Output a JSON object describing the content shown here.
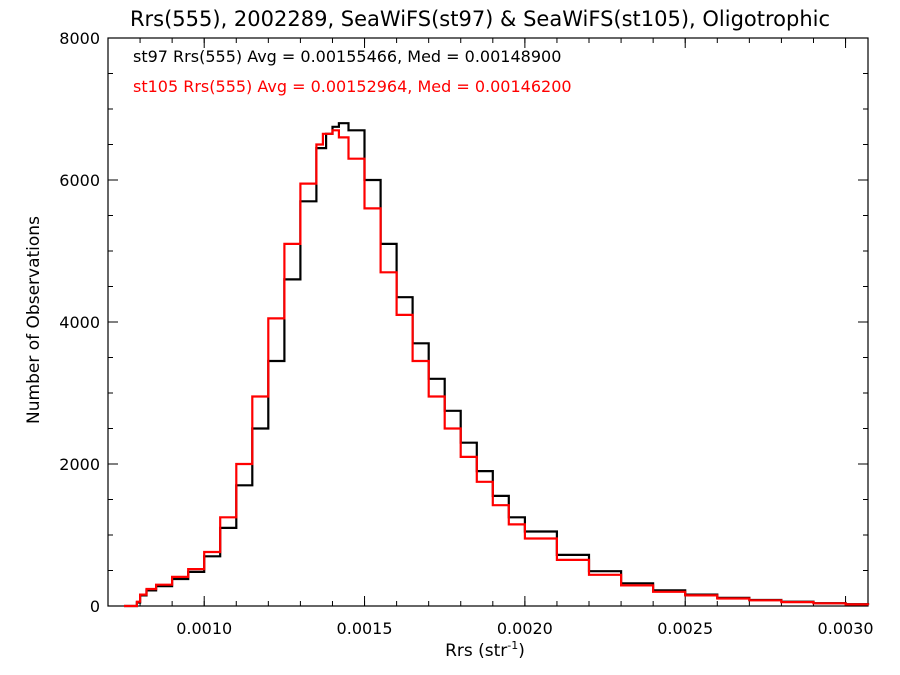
{
  "chart_data": {
    "type": "line",
    "step": true,
    "title": "Rrs(555), 2002289, SeaWiFS(st97) & SeaWiFS(st105), Oligotrophic",
    "xlabel_main": "Rrs (str",
    "xlabel_sup": "-1",
    "xlabel_close": ")",
    "ylabel": "Number of Observations",
    "xlim": [
      0.0007,
      0.00307
    ],
    "ylim": [
      0,
      8000
    ],
    "x_ticks": [
      0.001,
      0.0015,
      0.002,
      0.0025,
      0.003
    ],
    "x_tick_labels": [
      "0.0010",
      "0.0015",
      "0.0020",
      "0.0025",
      "0.0030"
    ],
    "y_ticks": [
      0,
      2000,
      4000,
      6000,
      8000
    ],
    "y_tick_labels": [
      "0",
      "2000",
      "4000",
      "6000",
      "8000"
    ],
    "grid": false,
    "legend_position": "top-left",
    "series": [
      {
        "label": "st97 Rrs(555) Avg = 0.00155466, Med = 0.00148900",
        "color": "#000000",
        "x": [
          0.00075,
          0.00078,
          0.00079,
          0.0008,
          0.00082,
          0.00085,
          0.0009,
          0.00095,
          0.001,
          0.00105,
          0.0011,
          0.00115,
          0.0012,
          0.00125,
          0.0013,
          0.00135,
          0.00138,
          0.0014,
          0.00142,
          0.00145,
          0.0015,
          0.00155,
          0.0016,
          0.00165,
          0.0017,
          0.00175,
          0.0018,
          0.00185,
          0.0019,
          0.00195,
          0.002,
          0.0021,
          0.0022,
          0.0023,
          0.0024,
          0.0025,
          0.0026,
          0.0027,
          0.0028,
          0.0029,
          0.003,
          0.00307
        ],
        "y": [
          0,
          0,
          50,
          150,
          220,
          280,
          380,
          480,
          700,
          1100,
          1700,
          2500,
          3450,
          4600,
          5700,
          6450,
          6650,
          6750,
          6800,
          6700,
          6000,
          5100,
          4350,
          3700,
          3200,
          2750,
          2300,
          1900,
          1550,
          1250,
          1050,
          720,
          490,
          320,
          220,
          160,
          115,
          85,
          60,
          40,
          25,
          15
        ]
      },
      {
        "label": "st105 Rrs(555) Avg = 0.00152964, Med = 0.00146200",
        "color": "#ff0000",
        "x": [
          0.00075,
          0.00078,
          0.00079,
          0.0008,
          0.00082,
          0.00085,
          0.0009,
          0.00095,
          0.001,
          0.00105,
          0.0011,
          0.00115,
          0.0012,
          0.00125,
          0.0013,
          0.00135,
          0.00137,
          0.0014,
          0.00142,
          0.00145,
          0.0015,
          0.00155,
          0.0016,
          0.00165,
          0.0017,
          0.00175,
          0.0018,
          0.00185,
          0.0019,
          0.00195,
          0.002,
          0.0021,
          0.0022,
          0.0023,
          0.0024,
          0.0025,
          0.0026,
          0.0027,
          0.0028,
          0.0029,
          0.003,
          0.00307
        ],
        "y": [
          0,
          0,
          60,
          160,
          240,
          300,
          410,
          520,
          760,
          1250,
          2000,
          2950,
          4050,
          5100,
          5950,
          6500,
          6650,
          6700,
          6600,
          6300,
          5600,
          4700,
          4100,
          3450,
          2950,
          2500,
          2100,
          1750,
          1420,
          1150,
          950,
          650,
          440,
          290,
          200,
          150,
          105,
          80,
          55,
          38,
          22,
          12
        ]
      }
    ]
  }
}
